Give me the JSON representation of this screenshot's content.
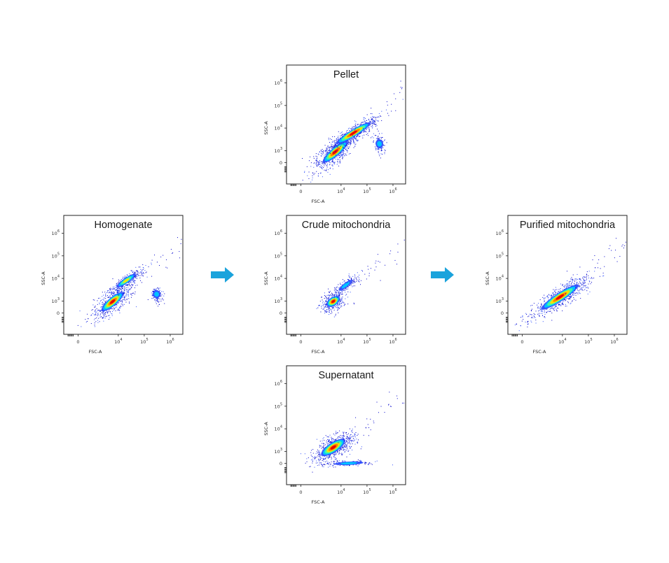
{
  "figure": {
    "arrow_color": "#1aa3dc",
    "density_palette": [
      "#0000cc",
      "#2d4fff",
      "#00c8ff",
      "#4cff9a",
      "#ffe000",
      "#ff7a00",
      "#e60000"
    ]
  },
  "chart_data": [
    {
      "type": "scatter",
      "subtype": "flow-cytometry-density",
      "panel": "homogenate",
      "title": "Homogenate",
      "xlabel": "FSC-A",
      "ylabel": "SSC-A",
      "x_scale": "biexponential",
      "y_scale": "biexponential",
      "xlim": [
        -1000,
        3000000
      ],
      "ylim": [
        -300,
        3000000
      ],
      "x_ticks": [
        {
          "label": "0",
          "base": "0",
          "exp": ""
        },
        {
          "label": "10^4",
          "base": "10",
          "exp": "4"
        },
        {
          "label": "10^5",
          "base": "10",
          "exp": "5"
        },
        {
          "label": "10^6",
          "base": "10",
          "exp": "6"
        }
      ],
      "y_ticks": [
        {
          "label": "0",
          "base": "0",
          "exp": ""
        },
        {
          "label": "10^3",
          "base": "10",
          "exp": "3"
        },
        {
          "label": "10^4",
          "base": "10",
          "exp": "4"
        },
        {
          "label": "10^5",
          "base": "10",
          "exp": "5"
        },
        {
          "label": "10^6",
          "base": "10",
          "exp": "6"
        }
      ],
      "populations": [
        {
          "name": "main diagonal population",
          "center": [
            6000,
            700
          ],
          "density_peak": "high"
        },
        {
          "name": "upper diagonal band",
          "center": [
            20000,
            8000
          ],
          "density_peak": "medium"
        },
        {
          "name": "large-particle cluster",
          "center": [
            300000,
            2000
          ],
          "density_peak": "low"
        }
      ]
    },
    {
      "type": "scatter",
      "subtype": "flow-cytometry-density",
      "panel": "pellet",
      "title": "Pellet",
      "xlabel": "FSC-A",
      "ylabel": "SSC-A",
      "x_scale": "biexponential",
      "y_scale": "biexponential",
      "xlim": [
        -1000,
        3000000
      ],
      "ylim": [
        -300,
        3000000
      ],
      "x_ticks": [
        {
          "label": "0",
          "base": "0",
          "exp": ""
        },
        {
          "label": "10^4",
          "base": "10",
          "exp": "4"
        },
        {
          "label": "10^5",
          "base": "10",
          "exp": "5"
        },
        {
          "label": "10^6",
          "base": "10",
          "exp": "6"
        }
      ],
      "y_ticks": [
        {
          "label": "0",
          "base": "0",
          "exp": ""
        },
        {
          "label": "10^3",
          "base": "10",
          "exp": "3"
        },
        {
          "label": "10^4",
          "base": "10",
          "exp": "4"
        },
        {
          "label": "10^5",
          "base": "10",
          "exp": "5"
        },
        {
          "label": "10^6",
          "base": "10",
          "exp": "6"
        }
      ],
      "populations": [
        {
          "name": "main diagonal population",
          "center": [
            6000,
            500
          ],
          "density_peak": "high"
        },
        {
          "name": "upper diagonal band",
          "center": [
            30000,
            6000
          ],
          "density_peak": "high"
        },
        {
          "name": "large-particle cluster",
          "center": [
            300000,
            2000
          ],
          "density_peak": "low"
        }
      ]
    },
    {
      "type": "scatter",
      "subtype": "flow-cytometry-density",
      "panel": "crude",
      "title": "Crude mitochondria",
      "xlabel": "FSC-A",
      "ylabel": "SSC-A",
      "x_scale": "biexponential",
      "y_scale": "biexponential",
      "xlim": [
        -1000,
        3000000
      ],
      "ylim": [
        -300,
        3000000
      ],
      "x_ticks": [
        {
          "label": "0",
          "base": "0",
          "exp": ""
        },
        {
          "label": "10^4",
          "base": "10",
          "exp": "4"
        },
        {
          "label": "10^5",
          "base": "10",
          "exp": "5"
        },
        {
          "label": "10^6",
          "base": "10",
          "exp": "6"
        }
      ],
      "y_ticks": [
        {
          "label": "0",
          "base": "0",
          "exp": ""
        },
        {
          "label": "10^3",
          "base": "10",
          "exp": "3"
        },
        {
          "label": "10^4",
          "base": "10",
          "exp": "4"
        },
        {
          "label": "10^5",
          "base": "10",
          "exp": "5"
        },
        {
          "label": "10^6",
          "base": "10",
          "exp": "6"
        }
      ],
      "populations": [
        {
          "name": "main population",
          "center": [
            5000,
            800
          ],
          "density_peak": "high"
        },
        {
          "name": "upper diagonal band",
          "center": [
            15000,
            5000
          ],
          "density_peak": "low"
        }
      ]
    },
    {
      "type": "scatter",
      "subtype": "flow-cytometry-density",
      "panel": "purified",
      "title": "Purified mitochondria",
      "xlabel": "FSC-A",
      "ylabel": "SSC-A",
      "x_scale": "biexponential",
      "y_scale": "biexponential",
      "xlim": [
        -1000,
        3000000
      ],
      "ylim": [
        -300,
        3000000
      ],
      "x_ticks": [
        {
          "label": "0",
          "base": "0",
          "exp": ""
        },
        {
          "label": "10^4",
          "base": "10",
          "exp": "4"
        },
        {
          "label": "10^5",
          "base": "10",
          "exp": "5"
        },
        {
          "label": "10^6",
          "base": "10",
          "exp": "6"
        }
      ],
      "y_ticks": [
        {
          "label": "0",
          "base": "0",
          "exp": ""
        },
        {
          "label": "10^3",
          "base": "10",
          "exp": "3"
        },
        {
          "label": "10^4",
          "base": "10",
          "exp": "4"
        },
        {
          "label": "10^5",
          "base": "10",
          "exp": "5"
        },
        {
          "label": "10^6",
          "base": "10",
          "exp": "6"
        }
      ],
      "populations": [
        {
          "name": "single diagonal population",
          "center": [
            8000,
            1500
          ],
          "density_peak": "high"
        }
      ]
    },
    {
      "type": "scatter",
      "subtype": "flow-cytometry-density",
      "panel": "supernatant",
      "title": "Supernatant",
      "xlabel": "FSC-A",
      "ylabel": "SSC-A",
      "x_scale": "biexponential",
      "y_scale": "biexponential",
      "xlim": [
        -1000,
        3000000
      ],
      "ylim": [
        -300,
        3000000
      ],
      "x_ticks": [
        {
          "label": "0",
          "base": "0",
          "exp": ""
        },
        {
          "label": "10^4",
          "base": "10",
          "exp": "4"
        },
        {
          "label": "10^5",
          "base": "10",
          "exp": "5"
        },
        {
          "label": "10^6",
          "base": "10",
          "exp": "6"
        }
      ],
      "y_ticks": [
        {
          "label": "0",
          "base": "0",
          "exp": ""
        },
        {
          "label": "10^3",
          "base": "10",
          "exp": "3"
        },
        {
          "label": "10^4",
          "base": "10",
          "exp": "4"
        },
        {
          "label": "10^5",
          "base": "10",
          "exp": "5"
        },
        {
          "label": "10^6",
          "base": "10",
          "exp": "6"
        }
      ],
      "populations": [
        {
          "name": "main diagonal population",
          "center": [
            5000,
            1500
          ],
          "density_peak": "high"
        },
        {
          "name": "low-SSC debris",
          "center": [
            20000,
            0
          ],
          "density_peak": "low"
        }
      ]
    }
  ]
}
